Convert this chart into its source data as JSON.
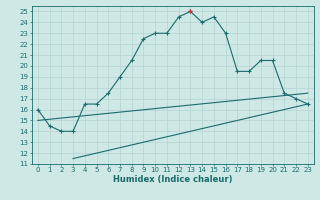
{
  "xlabel": "Humidex (Indice chaleur)",
  "ylabel": "",
  "bg_color": "#cde8e5",
  "line_color": "#1a6b6b",
  "grid_color": "#b8d8d5",
  "xlim": [
    -0.5,
    23.5
  ],
  "ylim": [
    11,
    25.5
  ],
  "yticks": [
    11,
    12,
    13,
    14,
    15,
    16,
    17,
    18,
    19,
    20,
    21,
    22,
    23,
    24,
    25
  ],
  "xticks": [
    0,
    1,
    2,
    3,
    4,
    5,
    6,
    7,
    8,
    9,
    10,
    11,
    12,
    13,
    14,
    15,
    16,
    17,
    18,
    19,
    20,
    21,
    22,
    23
  ],
  "main_x": [
    0,
    1,
    2,
    3,
    4,
    5,
    6,
    7,
    8,
    9,
    10,
    11,
    12,
    13,
    14,
    15,
    16,
    17,
    18,
    19,
    20,
    21,
    22,
    23
  ],
  "main_y": [
    16,
    14.5,
    14,
    14,
    16.5,
    16.5,
    17.5,
    19,
    20.5,
    22.5,
    23,
    23,
    24.5,
    25,
    24,
    24.5,
    23,
    19.5,
    19.5,
    20.5,
    20.5,
    17.5,
    17,
    16.5
  ],
  "line1_x": [
    0,
    23
  ],
  "line1_y": [
    15.0,
    17.5
  ],
  "line2_x": [
    3,
    23
  ],
  "line2_y": [
    11.5,
    16.5
  ],
  "special_x": 13,
  "special_y": 25,
  "special_color": "#cc3333"
}
